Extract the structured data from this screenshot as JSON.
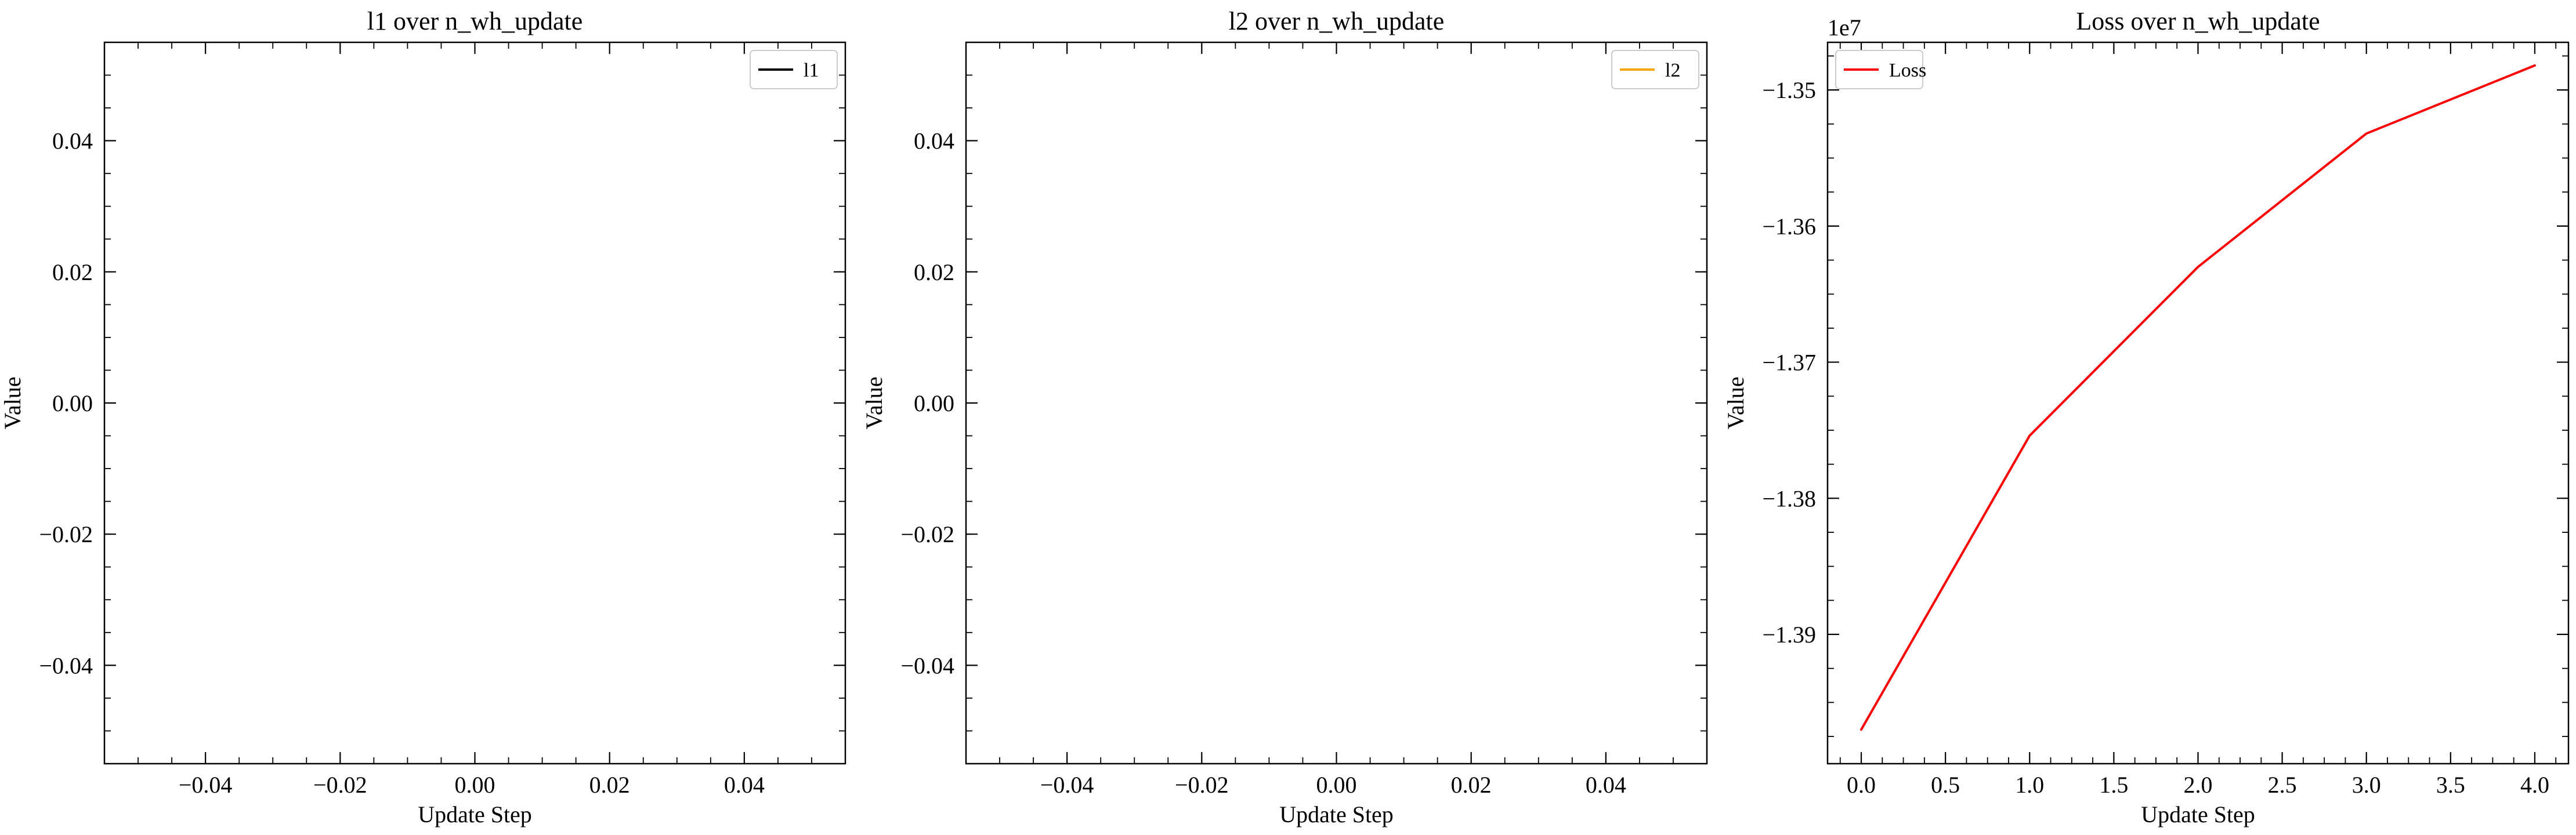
{
  "figure": {
    "background": "#ffffff"
  },
  "chart_data": [
    {
      "type": "line",
      "title": "l1 over n_wh_update",
      "xlabel": "Update Step",
      "ylabel": "Value",
      "offset_text": "",
      "xlim": [
        -0.055,
        0.055
      ],
      "ylim": [
        -0.055,
        0.055
      ],
      "xticks": [
        -0.04,
        -0.02,
        0.0,
        0.02,
        0.04
      ],
      "xtick_labels": [
        "−0.04",
        "−0.02",
        "0.00",
        "0.02",
        "0.04"
      ],
      "yticks": [
        -0.04,
        -0.02,
        0.0,
        0.02,
        0.04
      ],
      "ytick_labels": [
        "−0.04",
        "−0.02",
        "0.00",
        "0.02",
        "0.04"
      ],
      "grid": false,
      "legend": {
        "position": "upper-right",
        "entries": [
          {
            "label": "l1",
            "color": "#000000"
          }
        ]
      },
      "series": [
        {
          "name": "l1",
          "color": "#000000",
          "x": [],
          "y": []
        }
      ]
    },
    {
      "type": "line",
      "title": "l2 over n_wh_update",
      "xlabel": "Update Step",
      "ylabel": "Value",
      "offset_text": "",
      "xlim": [
        -0.055,
        0.055
      ],
      "ylim": [
        -0.055,
        0.055
      ],
      "xticks": [
        -0.04,
        -0.02,
        0.0,
        0.02,
        0.04
      ],
      "xtick_labels": [
        "−0.04",
        "−0.02",
        "0.00",
        "0.02",
        "0.04"
      ],
      "yticks": [
        -0.04,
        -0.02,
        0.0,
        0.02,
        0.04
      ],
      "ytick_labels": [
        "−0.04",
        "−0.02",
        "0.00",
        "0.02",
        "0.04"
      ],
      "grid": false,
      "legend": {
        "position": "upper-right",
        "entries": [
          {
            "label": "l2",
            "color": "#ffa500"
          }
        ]
      },
      "series": [
        {
          "name": "l2",
          "color": "#ffa500",
          "x": [],
          "y": []
        }
      ]
    },
    {
      "type": "line",
      "title": "Loss over n_wh_update",
      "xlabel": "Update Step",
      "ylabel": "Value",
      "offset_text": "1e7",
      "xlim": [
        -0.2,
        4.2
      ],
      "ylim": [
        -13.995,
        -13.465
      ],
      "xticks": [
        0.0,
        0.5,
        1.0,
        1.5,
        2.0,
        2.5,
        3.0,
        3.5,
        4.0
      ],
      "xtick_labels": [
        "0.0",
        "0.5",
        "1.0",
        "1.5",
        "2.0",
        "2.5",
        "3.0",
        "3.5",
        "4.0"
      ],
      "yticks": [
        -13.9,
        -13.8,
        -13.7,
        -13.6,
        -13.5
      ],
      "ytick_labels": [
        "−1.39",
        "−1.38",
        "−1.37",
        "−1.36",
        "−1.35"
      ],
      "grid": false,
      "legend": {
        "position": "upper-left",
        "entries": [
          {
            "label": "Loss",
            "color": "#ff0000"
          }
        ]
      },
      "series": [
        {
          "name": "Loss",
          "color": "#ff0000",
          "x": [
            0,
            1,
            2,
            3,
            4
          ],
          "y": [
            -13.97,
            -13.754,
            -13.63,
            -13.532,
            -13.482
          ]
        }
      ]
    }
  ]
}
